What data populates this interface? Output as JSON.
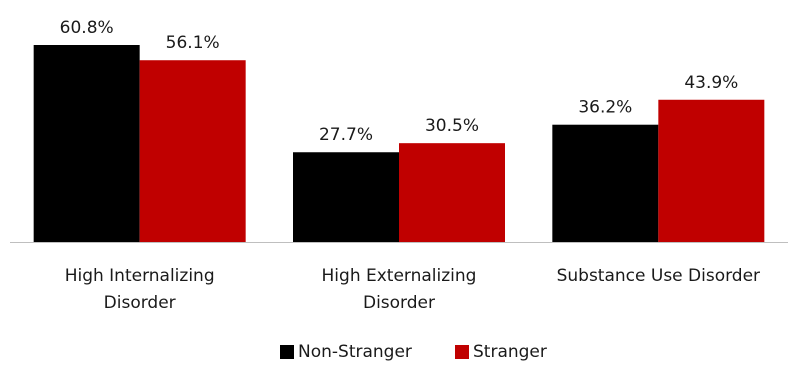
{
  "chart_data": {
    "type": "bar",
    "categories": [
      [
        "High Internalizing",
        "Disorder"
      ],
      [
        "High Externalizing",
        "Disorder"
      ],
      [
        "Substance Use Disorder"
      ]
    ],
    "series": [
      {
        "name": "Non-Stranger",
        "color": "#000000",
        "values": [
          60.8,
          27.7,
          36.2
        ],
        "labels": [
          "60.8%",
          "27.7%",
          "36.2%"
        ]
      },
      {
        "name": "Stranger",
        "color": "#c00000",
        "values": [
          56.1,
          30.5,
          43.9
        ],
        "labels": [
          "56.1%",
          "30.5%",
          "43.9%"
        ]
      }
    ],
    "ylim": [
      0,
      62
    ],
    "grid": false,
    "legend_position": "bottom",
    "axis_color": "#bfbfbf"
  }
}
